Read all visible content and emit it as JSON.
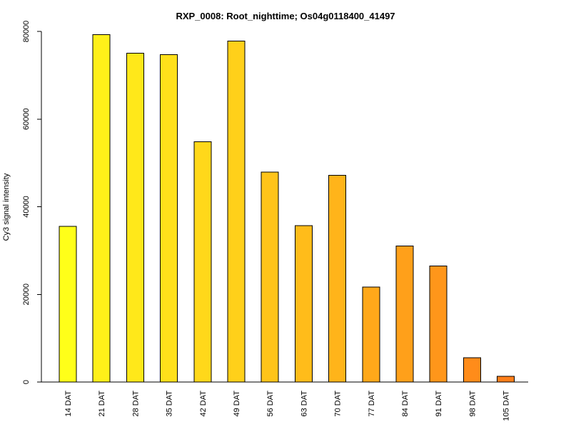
{
  "chart_data": {
    "type": "bar",
    "title": "RXP_0008: Root_nighttime; Os04g0118400_41497",
    "xlabel": "",
    "ylabel": "Cy3 signal intensity",
    "categories": [
      "14 DAT",
      "21 DAT",
      "28 DAT",
      "35 DAT",
      "42 DAT",
      "49 DAT",
      "56 DAT",
      "63 DAT",
      "70 DAT",
      "77 DAT",
      "84 DAT",
      "91 DAT",
      "98 DAT",
      "105 DAT"
    ],
    "values": [
      35500,
      79300,
      75000,
      74700,
      54800,
      77800,
      47900,
      35700,
      47200,
      21700,
      31000,
      26500,
      5500,
      1300
    ],
    "colors": [
      "#FFFF19",
      "#FFF019",
      "#FFE81A",
      "#FFE01A",
      "#FFD81A",
      "#FFD01A",
      "#FFC41A",
      "#FFBC1A",
      "#FFB41A",
      "#FFA81A",
      "#FFA01A",
      "#FF961A",
      "#FF8C1A",
      "#FF7F1A"
    ],
    "yticks": [
      0,
      20000,
      40000,
      60000,
      80000
    ],
    "ylim": [
      0,
      80000
    ],
    "grid": false,
    "legend": "none"
  }
}
